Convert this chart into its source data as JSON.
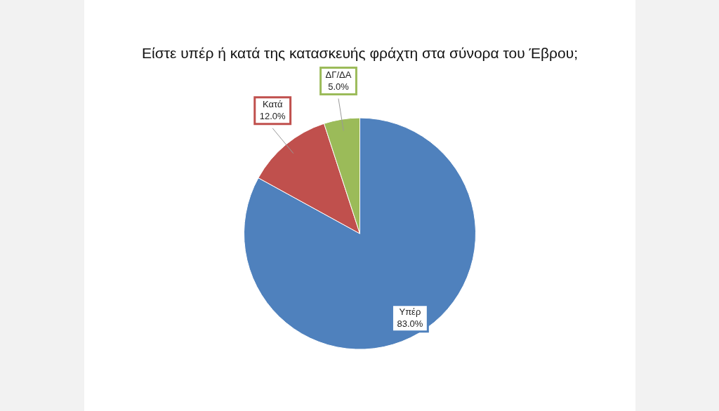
{
  "chart_data": {
    "type": "pie",
    "title": "Είστε υπέρ ή κατά της κατασκευής φράχτη στα σύνορα του Έβρου;",
    "categories": [
      "Υπέρ",
      "Κατά",
      "ΔΓ/ΔΑ"
    ],
    "values": [
      83.0,
      12.0,
      5.0
    ],
    "value_labels": [
      "83.0%",
      "12.0%",
      "5.0%"
    ],
    "colors": [
      "#4f81bd",
      "#c0504d",
      "#9bbb59"
    ],
    "legend": false
  }
}
